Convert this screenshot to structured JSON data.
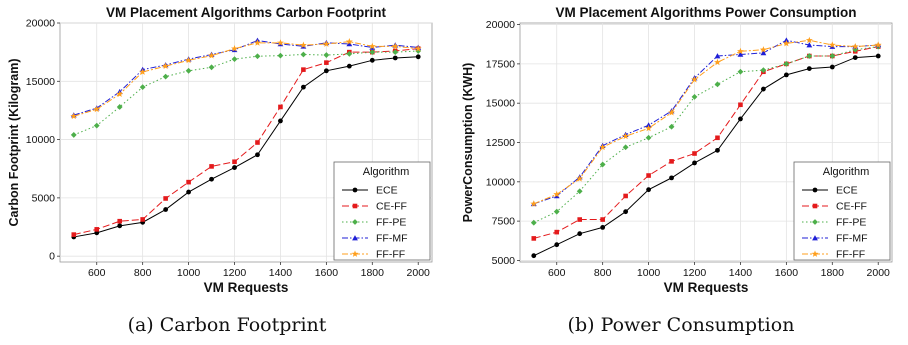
{
  "chart_data": [
    {
      "type": "line",
      "title": "VM Placement Algorithms Carbon Footprint",
      "xlabel": "VM Requests",
      "ylabel": "Carbon Footprint (Kilogram)",
      "caption": "(a) Carbon Footprint",
      "xlim": [
        440,
        2060
      ],
      "ylim": [
        -500,
        20000
      ],
      "xticks": [
        600,
        800,
        1000,
        1200,
        1400,
        1600,
        1800,
        2000
      ],
      "yticks": [
        0,
        5000,
        10000,
        15000,
        20000
      ],
      "ytick_labels": [
        "0",
        "5000",
        "10000",
        "15000",
        "20000"
      ],
      "grid": true,
      "legend": {
        "title": "Algorithm",
        "position": "bottom-right"
      },
      "x": [
        500,
        600,
        700,
        800,
        900,
        1000,
        1100,
        1200,
        1300,
        1400,
        1500,
        1600,
        1700,
        1800,
        1900,
        2000
      ],
      "series": [
        {
          "name": "ECE",
          "color": "#000000",
          "dash": "solid",
          "marker": "circle",
          "values": [
            1650,
            2000,
            2600,
            2900,
            4000,
            5500,
            6600,
            7600,
            8700,
            11600,
            14500,
            15900,
            16300,
            16800,
            17000,
            17100
          ]
        },
        {
          "name": "CE-FF",
          "color": "#e41a1c",
          "dash": "longdash",
          "marker": "square",
          "values": [
            1850,
            2300,
            3000,
            3150,
            4950,
            6350,
            7700,
            8100,
            9750,
            12800,
            16000,
            16600,
            17500,
            17500,
            17600,
            17800
          ]
        },
        {
          "name": "FF-PE",
          "color": "#4daf4a",
          "dash": "dot",
          "marker": "diamond",
          "values": [
            10400,
            11200,
            12800,
            14500,
            15400,
            15900,
            16200,
            16900,
            17150,
            17200,
            17300,
            17250,
            17350,
            17500,
            17500,
            17600
          ]
        },
        {
          "name": "FF-MF",
          "color": "#1f1fd6",
          "dash": "dashdot",
          "marker": "triangle",
          "values": [
            12100,
            12700,
            14100,
            16000,
            16400,
            16900,
            17300,
            17700,
            18500,
            18200,
            18000,
            18300,
            18200,
            17900,
            18100,
            17900
          ]
        },
        {
          "name": "FF-FF",
          "color": "#ff9f1c",
          "dash": "twodash",
          "marker": "star",
          "values": [
            12000,
            12600,
            13900,
            15800,
            16300,
            16800,
            17200,
            17800,
            18300,
            18300,
            18100,
            18200,
            18400,
            18000,
            18000,
            17800
          ]
        }
      ]
    },
    {
      "type": "line",
      "title": "VM Placement Algorithms Power Consumption",
      "xlabel": "VM Requests",
      "ylabel": "PowerConsumption (KWH)",
      "caption": "(b) Power Consumption",
      "xlim": [
        440,
        2060
      ],
      "ylim": [
        4900,
        20100
      ],
      "xticks": [
        600,
        800,
        1000,
        1200,
        1400,
        1600,
        1800,
        2000
      ],
      "yticks": [
        5000,
        7500,
        10000,
        12500,
        15000,
        17500,
        20000
      ],
      "ytick_labels": [
        "5000",
        "7500",
        "10000",
        "12500",
        "15000",
        "17500",
        "20000"
      ],
      "grid": true,
      "legend": {
        "title": "Algorithm",
        "position": "bottom-right"
      },
      "x": [
        500,
        600,
        700,
        800,
        900,
        1000,
        1100,
        1200,
        1300,
        1400,
        1500,
        1600,
        1700,
        1800,
        1900,
        2000
      ],
      "series": [
        {
          "name": "ECE",
          "color": "#000000",
          "dash": "solid",
          "marker": "circle",
          "values": [
            5300,
            6000,
            6700,
            7100,
            8100,
            9500,
            10250,
            11200,
            12000,
            14000,
            15900,
            16800,
            17200,
            17300,
            17900,
            18000
          ]
        },
        {
          "name": "CE-FF",
          "color": "#e41a1c",
          "dash": "longdash",
          "marker": "square",
          "values": [
            6400,
            6800,
            7600,
            7600,
            9100,
            10400,
            11300,
            11800,
            12800,
            14900,
            17000,
            17500,
            18000,
            18000,
            18300,
            18600
          ]
        },
        {
          "name": "FF-PE",
          "color": "#4daf4a",
          "dash": "dot",
          "marker": "diamond",
          "values": [
            7400,
            8100,
            9400,
            11100,
            12200,
            12800,
            13500,
            15400,
            16200,
            17000,
            17100,
            17500,
            18000,
            18000,
            18400,
            18600
          ]
        },
        {
          "name": "FF-MF",
          "color": "#1f1fd6",
          "dash": "dashdot",
          "marker": "triangle",
          "values": [
            8600,
            9100,
            10300,
            12300,
            13000,
            13600,
            14500,
            16600,
            18000,
            18100,
            18200,
            19000,
            18700,
            18600,
            18600,
            18700
          ]
        },
        {
          "name": "FF-FF",
          "color": "#ff9f1c",
          "dash": "twodash",
          "marker": "star",
          "values": [
            8600,
            9200,
            10200,
            12200,
            12900,
            13400,
            14400,
            16500,
            17600,
            18300,
            18400,
            18800,
            19000,
            18700,
            18600,
            18700
          ]
        }
      ]
    }
  ]
}
